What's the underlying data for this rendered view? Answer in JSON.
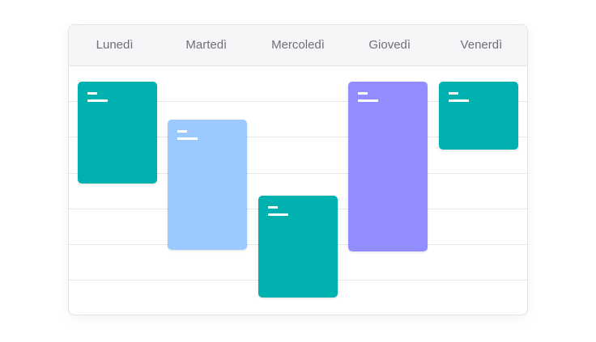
{
  "days": [
    "Lunedì",
    "Martedì",
    "Mercoledì",
    "Giovedì",
    "Venerdì"
  ],
  "colors": {
    "teal": "#00b1b0",
    "light_blue": "#9cc9ff",
    "purple": "#918cff"
  },
  "events": [
    {
      "day": "Lunedì",
      "color": "#00b1b0"
    },
    {
      "day": "Martedì",
      "color": "#9cc9ff"
    },
    {
      "day": "Mercoledì",
      "color": "#00b1b0"
    },
    {
      "day": "Giovedì",
      "color": "#918cff"
    },
    {
      "day": "Venerdì",
      "color": "#00b1b0"
    }
  ]
}
